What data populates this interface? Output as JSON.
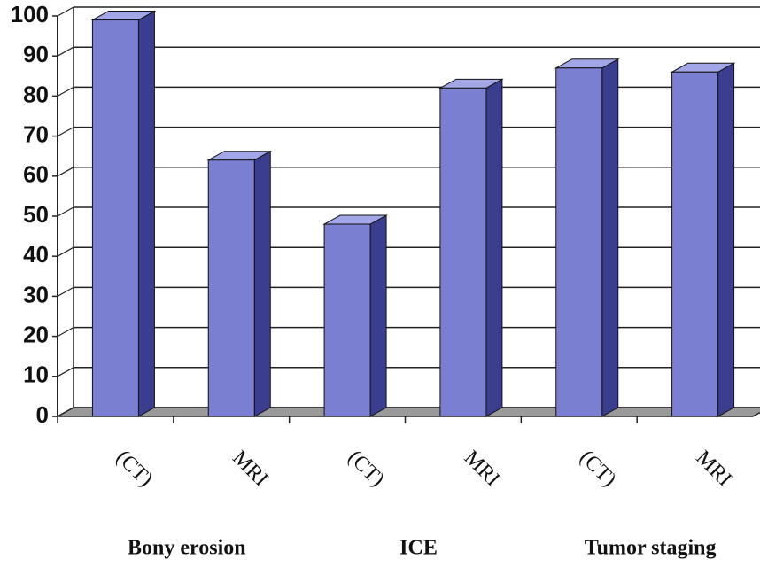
{
  "chart_data": {
    "type": "bar3d",
    "categories": [
      "(CT)",
      "MRI",
      "(CT)",
      "MRI",
      "(CT)",
      "MRI"
    ],
    "groups": [
      "Bony erosion",
      "ICE",
      "Tumor staging"
    ],
    "values": [
      99,
      64,
      48,
      82,
      87,
      86
    ],
    "color": "#7b7fd2",
    "ylim": [
      0,
      100
    ],
    "yticks": [
      0,
      10,
      20,
      30,
      40,
      50,
      60,
      70,
      80,
      90,
      100
    ],
    "grid": true
  }
}
